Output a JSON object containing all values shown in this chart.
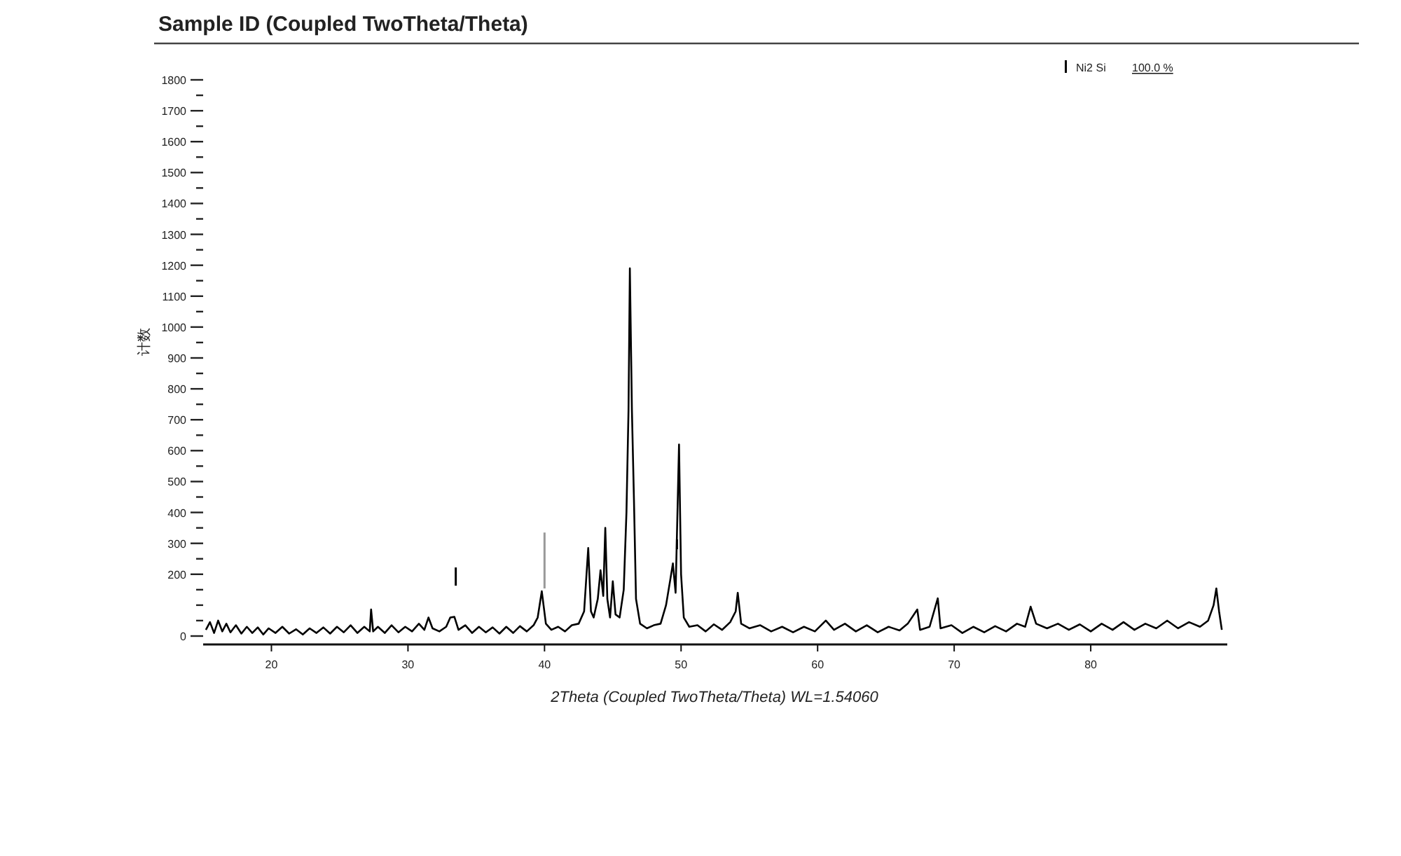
{
  "chart_data": {
    "type": "line",
    "title": "Sample ID (Coupled TwoTheta/Theta)",
    "xlabel": "2Theta (Coupled TwoTheta/Theta) WL=1.54060",
    "ylabel": "计数",
    "annotations": [
      "100.0 %"
    ],
    "xlim": [
      15,
      90
    ],
    "xticks": [
      20,
      30,
      40,
      50,
      60,
      70,
      80
    ],
    "ylim": [
      0,
      1800
    ],
    "yticks": [
      0,
      {
        "value": 50,
        "label": null
      },
      {
        "value": 100,
        "label": null
      },
      {
        "value": 150,
        "label": null
      },
      200,
      {
        "value": 250,
        "label": null
      },
      300,
      {
        "value": 350,
        "label": null
      },
      400,
      {
        "value": 450,
        "label": null
      },
      500,
      {
        "value": 550,
        "label": null
      },
      600,
      {
        "value": 650,
        "label": null
      },
      700,
      {
        "value": 750,
        "label": null
      },
      800,
      {
        "value": 850,
        "label": null
      },
      900,
      {
        "value": 950,
        "label": null
      },
      1000,
      {
        "value": 1050,
        "label": null
      },
      1100,
      {
        "value": 1150,
        "label": null
      },
      1200,
      {
        "value": 1250,
        "label": null
      },
      1300,
      {
        "value": 1350,
        "label": null
      },
      1400,
      {
        "value": 1450,
        "label": null
      },
      1500,
      {
        "value": 1550,
        "label": null
      },
      1600,
      {
        "value": 1650,
        "label": null
      },
      1700,
      {
        "value": 1750,
        "label": null
      },
      1800
    ],
    "legend": "top right",
    "series": [
      {
        "color": "#000000",
        "x": [
          15.2,
          15.5,
          15.8,
          16.1,
          16.4,
          16.7,
          17.0,
          17.4,
          17.8,
          18.2,
          18.6,
          19.0,
          19.4,
          19.8,
          20.3,
          20.8,
          21.3,
          21.8,
          22.3,
          22.8,
          23.3,
          23.8,
          24.3,
          24.8,
          25.3,
          25.8,
          26.3,
          26.8,
          27.2,
          27.3,
          27.45,
          27.8,
          28.3,
          28.8,
          29.3,
          29.8,
          30.3,
          30.8,
          31.2,
          31.5,
          31.8,
          32.3,
          32.8,
          33.1,
          33.4,
          33.7,
          34.2,
          34.7,
          35.2,
          35.7,
          36.2,
          36.7,
          37.2,
          37.7,
          38.2,
          38.7,
          39.2,
          39.5,
          39.8,
          40.1,
          40.5,
          41.0,
          41.5,
          42.0,
          42.5,
          42.9,
          43.2,
          43.4,
          43.6,
          43.9,
          44.1,
          44.3,
          44.45,
          44.6,
          44.8,
          45.0,
          45.2,
          45.5,
          45.8,
          46.0,
          46.15,
          46.25,
          46.4,
          46.55,
          46.7,
          47.0,
          47.5,
          48.0,
          48.5,
          48.9,
          49.2,
          49.4,
          49.6,
          49.85,
          50.0,
          50.2,
          50.6,
          51.2,
          51.8,
          52.4,
          53.0,
          53.6,
          54.0,
          54.15,
          54.4,
          55.0,
          55.8,
          56.6,
          57.4,
          58.2,
          59.0,
          59.8,
          60.6,
          61.2,
          62.0,
          62.8,
          63.6,
          64.4,
          65.2,
          66.0,
          66.6,
          67.3,
          67.5,
          68.2,
          68.8,
          69.0,
          69.8,
          70.6,
          71.4,
          72.2,
          73.0,
          73.8,
          74.6,
          75.2,
          75.6,
          76.0,
          76.8,
          77.6,
          78.4,
          79.2,
          80.0,
          80.8,
          81.6,
          82.4,
          83.2,
          84.0,
          84.8,
          85.6,
          86.4,
          87.2,
          88.0,
          88.6,
          89.0,
          89.2,
          89.4,
          89.6
        ],
        "values": [
          20,
          45,
          10,
          50,
          15,
          40,
          12,
          35,
          8,
          30,
          10,
          28,
          5,
          25,
          10,
          30,
          8,
          22,
          5,
          25,
          10,
          28,
          8,
          30,
          12,
          35,
          10,
          30,
          15,
          86,
          15,
          30,
          10,
          35,
          12,
          30,
          15,
          40,
          20,
          60,
          25,
          15,
          30,
          60,
          62,
          20,
          35,
          10,
          30,
          12,
          28,
          8,
          30,
          10,
          32,
          15,
          35,
          60,
          145,
          40,
          20,
          30,
          15,
          35,
          40,
          80,
          285,
          80,
          60,
          120,
          213,
          130,
          350,
          120,
          60,
          177,
          70,
          60,
          150,
          400,
          730,
          1190,
          730,
          440,
          120,
          40,
          25,
          35,
          40,
          100,
          180,
          235,
          140,
          620,
          200,
          60,
          30,
          35,
          15,
          38,
          20,
          45,
          80,
          140,
          40,
          25,
          35,
          15,
          30,
          12,
          30,
          15,
          50,
          20,
          40,
          15,
          35,
          12,
          30,
          18,
          40,
          86,
          20,
          30,
          122,
          25,
          35,
          10,
          30,
          12,
          32,
          15,
          40,
          30,
          95,
          40,
          25,
          40,
          20,
          38,
          15,
          40,
          20,
          45,
          20,
          40,
          25,
          50,
          25,
          45,
          30,
          50,
          100,
          154,
          80,
          20
        ]
      },
      {
        "type": "bar",
        "name": "Ni2 Si",
        "x": [
          33.5,
          40.0,
          49.7
        ],
        "base": [
          163,
          154,
          281
        ],
        "values": [
          59,
          181,
          32
        ],
        "colors": [
          "#000000",
          "#999999",
          "#000000"
        ]
      }
    ]
  }
}
